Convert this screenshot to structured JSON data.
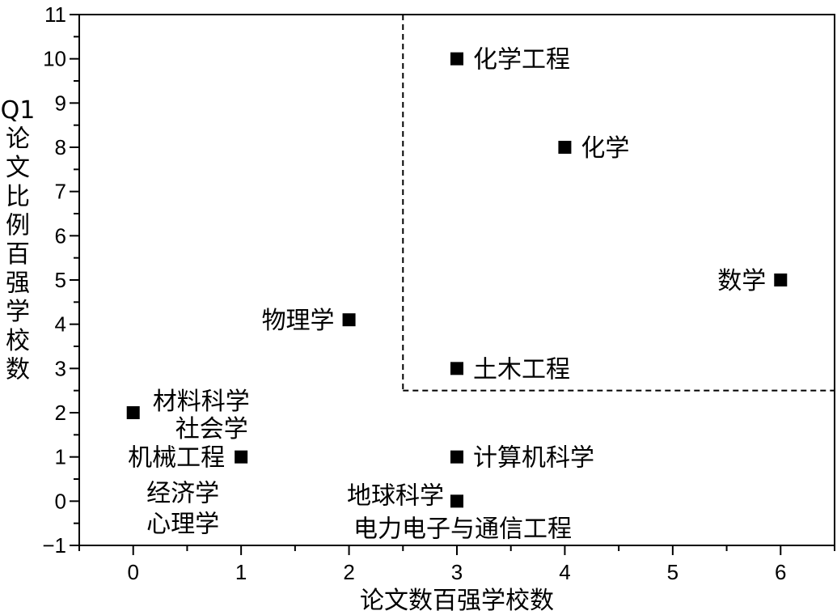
{
  "chart_data": {
    "type": "scatter",
    "title": "",
    "xlabel": "论文数百强学校数",
    "ylabel": "Q1论文比例百强学校数",
    "xlim": [
      -0.5,
      6.5
    ],
    "ylim": [
      -1,
      11
    ],
    "xticks": [
      0,
      1,
      2,
      3,
      4,
      5,
      6
    ],
    "yticks": [
      -1,
      0,
      1,
      2,
      3,
      4,
      5,
      6,
      7,
      8,
      9,
      10,
      11
    ],
    "grid": false,
    "legend": "none",
    "marker": "square",
    "marker_color": "#000000",
    "threshold_lines": {
      "x": 2.5,
      "y": 2.5,
      "style": "dashed",
      "region": "top-right"
    },
    "points": [
      {
        "x": 3,
        "y": 10,
        "label_lines": [
          "化学工程"
        ],
        "label_side": "right"
      },
      {
        "x": 4,
        "y": 8,
        "label_lines": [
          "化学"
        ],
        "label_side": "right"
      },
      {
        "x": 6,
        "y": 5,
        "label_lines": [
          "数学"
        ],
        "label_side": "left"
      },
      {
        "x": 2,
        "y": 4.1,
        "label_lines": [
          "物理学"
        ],
        "label_side": "left"
      },
      {
        "x": 3,
        "y": 3,
        "label_lines": [
          "土木工程"
        ],
        "label_side": "right"
      },
      {
        "x": 0,
        "y": 2,
        "label_lines": [
          "材料科学",
          "社会学"
        ],
        "label_side": "right"
      },
      {
        "x": 1,
        "y": 1,
        "label_lines": [
          "机械工程",
          "经济学",
          "心理学"
        ],
        "label_side": "left-stack"
      },
      {
        "x": 3,
        "y": 1,
        "label_lines": [
          "计算机科学"
        ],
        "label_side": "right"
      },
      {
        "x": 3,
        "y": 0,
        "label_lines": [
          "地球科学",
          "电力电子与通信工程"
        ],
        "label_side": "left-below"
      }
    ]
  }
}
